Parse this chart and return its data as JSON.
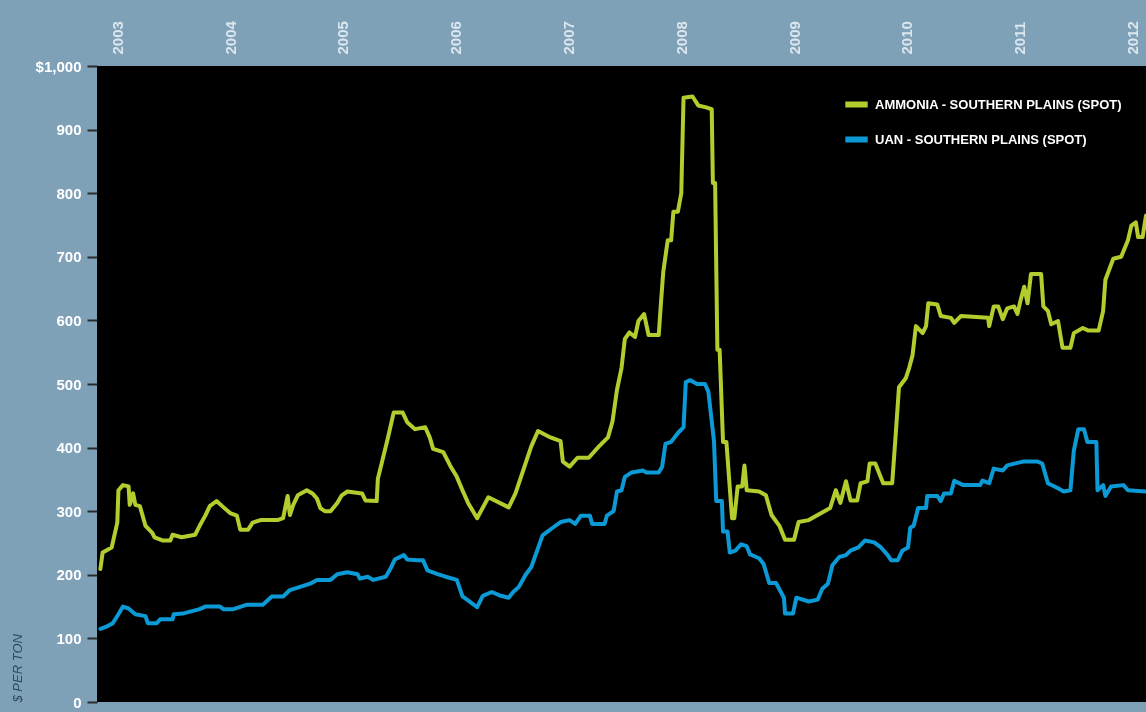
{
  "chart_data": {
    "type": "line",
    "ylabel": "$ PER TON",
    "xlim": [
      2002.82,
      2012.12
    ],
    "ylim": [
      0,
      1000
    ],
    "xticks": [
      2003,
      2004,
      2005,
      2006,
      2007,
      2008,
      2009,
      2010,
      2011,
      2012
    ],
    "yticks": [
      0,
      100,
      200,
      300,
      400,
      500,
      600,
      700,
      800,
      900,
      {
        "value": 1000,
        "label": "$1,000"
      }
    ],
    "grid": false,
    "legend": "top right",
    "line_style": "solid",
    "series": [
      {
        "name": "AMMONIA - SOUTHERN PLAINS (SPOT)",
        "color": "#b5cc2e",
        "x": [
          2002.85,
          2002.87,
          2002.95,
          2003.0,
          2003.01,
          2003.05,
          2003.1,
          2003.11,
          2003.14,
          2003.16,
          2003.2,
          2003.25,
          2003.31,
          2003.33,
          2003.4,
          2003.47,
          2003.49,
          2003.57,
          2003.69,
          2003.73,
          2003.78,
          2003.82,
          2003.88,
          2003.93,
          2004.0,
          2004.06,
          2004.09,
          2004.16,
          2004.2,
          2004.27,
          2004.42,
          2004.47,
          2004.51,
          2004.53,
          2004.56,
          2004.6,
          2004.68,
          2004.73,
          2004.77,
          2004.8,
          2004.84,
          2004.89,
          2004.95,
          2004.99,
          2005.04,
          2005.17,
          2005.2,
          2005.3,
          2005.31,
          2005.36,
          2005.4,
          2005.45,
          2005.53,
          2005.57,
          2005.64,
          2005.73,
          2005.77,
          2005.8,
          2005.89,
          2005.95,
          2006.01,
          2006.06,
          2006.11,
          2006.19,
          2006.29,
          2006.47,
          2006.53,
          2006.67,
          2006.73,
          2006.84,
          2006.93,
          2006.95,
          2007.01,
          2007.08,
          2007.18,
          2007.27,
          2007.35,
          2007.39,
          2007.43,
          2007.47,
          2007.5,
          2007.54,
          2007.59,
          2007.62,
          2007.67,
          2007.71,
          2007.8,
          2007.82,
          2007.84,
          2007.88,
          2007.91,
          2007.93,
          2007.97,
          2008.0,
          2008.02,
          2008.1,
          2008.15,
          2008.22,
          2008.27,
          2008.28,
          2008.3,
          2008.32,
          2008.34,
          2008.37,
          2008.4,
          2008.45,
          2008.47,
          2008.5,
          2008.54,
          2008.56,
          2008.58,
          2008.69,
          2008.75,
          2008.8,
          2008.87,
          2008.92,
          2009.0,
          2009.04,
          2009.13,
          2009.32,
          2009.37,
          2009.41,
          2009.46,
          2009.5,
          2009.56,
          2009.59,
          2009.65,
          2009.67,
          2009.72,
          2009.79,
          2009.87,
          2009.9,
          2009.93,
          2009.99,
          2010.02,
          2010.05,
          2010.08,
          2010.14,
          2010.17,
          2010.19,
          2010.27,
          2010.3,
          2010.39,
          2010.42,
          2010.48,
          2010.72,
          2010.73,
          2010.77,
          2010.81,
          2010.85,
          2010.89,
          2010.95,
          2010.98,
          2011.01,
          2011.04,
          2011.07,
          2011.1,
          2011.19,
          2011.21,
          2011.25,
          2011.28,
          2011.34,
          2011.38,
          2011.45,
          2011.48,
          2011.56,
          2011.61,
          2011.7,
          2011.74,
          2011.76,
          2011.83,
          2011.9,
          2011.96,
          2011.99,
          2012.03,
          2012.05,
          2012.09,
          2012.12
        ],
        "values": [
          209,
          235,
          243,
          282,
          333,
          341,
          339,
          310,
          328,
          310,
          308,
          277,
          266,
          259,
          254,
          254,
          263,
          259,
          263,
          277,
          293,
          308,
          316,
          308,
          297,
          293,
          271,
          271,
          282,
          286,
          286,
          289,
          324,
          294,
          310,
          325,
          333,
          328,
          320,
          305,
          300,
          300,
          313,
          325,
          331,
          328,
          317,
          316,
          351,
          387,
          416,
          455,
          455,
          440,
          429,
          432,
          416,
          398,
          393,
          372,
          354,
          333,
          313,
          289,
          322,
          306,
          328,
          402,
          426,
          416,
          410,
          378,
          370,
          384,
          384,
          402,
          416,
          441,
          491,
          525,
          571,
          581,
          574,
          599,
          610,
          577,
          577,
          628,
          676,
          726,
          726,
          771,
          771,
          800,
          950,
          952,
          938,
          935,
          932,
          816,
          816,
          554,
          554,
          409,
          409,
          289,
          289,
          339,
          339,
          372,
          333,
          331,
          325,
          294,
          277,
          255,
          255,
          283,
          286,
          305,
          333,
          313,
          347,
          317,
          317,
          344,
          347,
          375,
          375,
          344,
          344,
          418,
          495,
          509,
          525,
          545,
          591,
          580,
          591,
          627,
          625,
          607,
          604,
          596,
          607,
          604,
          591,
          622,
          622,
          602,
          619,
          622,
          610,
          633,
          653,
          627,
          673,
          673,
          622,
          615,
          594,
          599,
          557,
          557,
          580,
          588,
          584,
          584,
          615,
          664,
          697,
          700,
          726,
          749,
          754,
          731,
          731,
          765
        ]
      },
      {
        "name": "UAN - SOUTHERN PLAINS (SPOT)",
        "color": "#0b9ad6",
        "x": [
          2002.85,
          2002.91,
          2002.96,
          2003.01,
          2003.05,
          2003.1,
          2003.16,
          2003.25,
          2003.27,
          2003.35,
          2003.38,
          2003.49,
          2003.5,
          2003.58,
          2003.73,
          2003.78,
          2003.91,
          2003.94,
          2004.03,
          2004.15,
          2004.29,
          2004.37,
          2004.47,
          2004.53,
          2004.62,
          2004.71,
          2004.77,
          2004.89,
          2004.95,
          2005.04,
          2005.13,
          2005.15,
          2005.22,
          2005.27,
          2005.38,
          2005.42,
          2005.46,
          2005.54,
          2005.57,
          2005.66,
          2005.71,
          2005.75,
          2005.84,
          2005.91,
          2006.01,
          2006.06,
          2006.1,
          2006.19,
          2006.24,
          2006.32,
          2006.4,
          2006.47,
          2006.51,
          2006.56,
          2006.62,
          2006.67,
          2006.77,
          2006.86,
          2006.93,
          2007.01,
          2007.06,
          2007.11,
          2007.19,
          2007.21,
          2007.32,
          2007.34,
          2007.4,
          2007.43,
          2007.47,
          2007.5,
          2007.56,
          2007.66,
          2007.69,
          2007.8,
          2007.83,
          2007.86,
          2007.91,
          2007.97,
          2008.02,
          2008.04,
          2008.08,
          2008.14,
          2008.21,
          2008.24,
          2008.29,
          2008.31,
          2008.36,
          2008.37,
          2008.41,
          2008.43,
          2008.48,
          2008.53,
          2008.58,
          2008.61,
          2008.69,
          2008.73,
          2008.78,
          2008.84,
          2008.91,
          2008.92,
          2008.99,
          2009.02,
          2009.13,
          2009.21,
          2009.25,
          2009.3,
          2009.34,
          2009.4,
          2009.46,
          2009.5,
          2009.57,
          2009.63,
          2009.71,
          2009.77,
          2009.83,
          2009.86,
          2009.92,
          2009.96,
          2010.01,
          2010.03,
          2010.06,
          2010.1,
          2010.17,
          2010.18,
          2010.27,
          2010.3,
          2010.33,
          2010.39,
          2010.42,
          2010.5,
          2010.65,
          2010.67,
          2010.73,
          2010.77,
          2010.85,
          2010.89,
          2011.03,
          2011.16,
          2011.2,
          2011.25,
          2011.34,
          2011.39,
          2011.45,
          2011.48,
          2011.52,
          2011.57,
          2011.6,
          2011.68,
          2011.69,
          2011.74,
          2011.76,
          2011.81,
          2011.92,
          2011.96,
          2012.12
        ],
        "values": [
          115,
          119,
          124,
          138,
          150,
          147,
          138,
          135,
          124,
          124,
          130,
          130,
          138,
          139,
          146,
          150,
          150,
          146,
          146,
          153,
          153,
          166,
          166,
          176,
          181,
          186,
          192,
          192,
          201,
          204,
          201,
          194,
          197,
          192,
          197,
          209,
          224,
          231,
          224,
          223,
          223,
          207,
          201,
          197,
          192,
          166,
          161,
          149,
          167,
          173,
          167,
          164,
          173,
          181,
          200,
          212,
          262,
          274,
          283,
          286,
          280,
          293,
          293,
          280,
          280,
          293,
          300,
          331,
          333,
          354,
          361,
          364,
          361,
          361,
          370,
          406,
          409,
          423,
          432,
          503,
          506,
          500,
          500,
          488,
          410,
          316,
          316,
          268,
          268,
          235,
          238,
          248,
          245,
          232,
          226,
          217,
          187,
          187,
          164,
          139,
          139,
          164,
          158,
          161,
          178,
          186,
          215,
          228,
          231,
          238,
          243,
          254,
          251,
          243,
          231,
          223,
          223,
          238,
          243,
          274,
          277,
          305,
          305,
          324,
          324,
          316,
          328,
          328,
          348,
          341,
          341,
          348,
          344,
          367,
          364,
          372,
          378,
          378,
          375,
          344,
          336,
          331,
          333,
          395,
          429,
          429,
          409,
          409,
          333,
          341,
          324,
          339,
          341,
          333,
          331
        ]
      }
    ]
  }
}
